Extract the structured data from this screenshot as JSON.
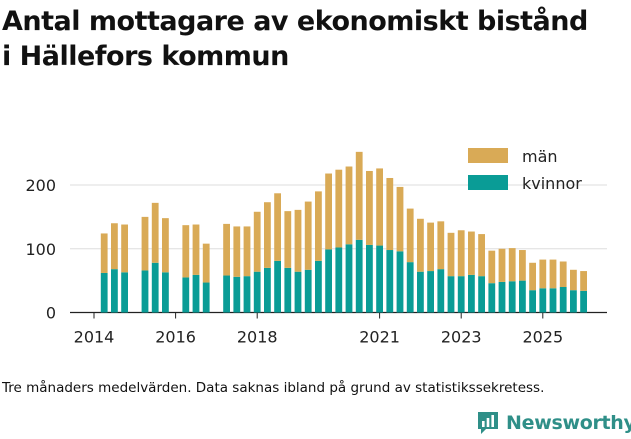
{
  "title_lines": [
    "Antal mottagare av ekonomiskt bistånd",
    "i Hällefors kommun"
  ],
  "footnote": "Tre månaders medelvärden. Data saknas ibland på grund av statistikssekretess.",
  "brand": {
    "name": "Newsworthy",
    "icon": "newsworthy-logo-icon",
    "color": "#2f8f88"
  },
  "colors": {
    "man": "#d9aa56",
    "kvinnor": "#0a9c96",
    "grid": "#dddddd"
  },
  "chart_data": {
    "type": "bar",
    "stacked": true,
    "title": "Antal mottagare av ekonomiskt bistånd i Hällefors kommun",
    "xlabel": "",
    "ylabel": "",
    "ylim": [
      0,
      290
    ],
    "yticks": [
      0,
      100,
      200
    ],
    "xticks": [
      2014,
      2016,
      2018,
      2021,
      2023,
      2025
    ],
    "legend_position": "top-right",
    "x": [
      2014.25,
      2014.5,
      2014.75,
      2015.25,
      2015.5,
      2015.75,
      2016.25,
      2016.5,
      2016.75,
      2017.25,
      2017.5,
      2017.75,
      2018.0,
      2018.25,
      2018.5,
      2018.75,
      2019.0,
      2019.25,
      2019.5,
      2019.75,
      2020.0,
      2020.25,
      2020.5,
      2020.75,
      2021.0,
      2021.25,
      2021.5,
      2021.75,
      2022.0,
      2022.25,
      2022.5,
      2022.75,
      2023.0,
      2023.25,
      2023.5,
      2023.75,
      2024.0,
      2024.25,
      2024.5,
      2024.75,
      2025.0,
      2025.25,
      2025.5,
      2025.75,
      2026.0
    ],
    "series": [
      {
        "name": "kvinnor",
        "color": "#0a9c96",
        "values": [
          62,
          68,
          63,
          66,
          78,
          63,
          55,
          59,
          47,
          58,
          56,
          57,
          64,
          70,
          81,
          70,
          64,
          67,
          81,
          99,
          102,
          107,
          114,
          106,
          105,
          98,
          96,
          79,
          64,
          65,
          68,
          57,
          57,
          59,
          57,
          46,
          48,
          49,
          50,
          35,
          38,
          38,
          40,
          35,
          34
        ]
      },
      {
        "name": "män",
        "color": "#d9aa56",
        "values": [
          62,
          72,
          75,
          84,
          94,
          85,
          82,
          79,
          61,
          81,
          79,
          78,
          94,
          103,
          106,
          89,
          97,
          107,
          109,
          119,
          122,
          122,
          138,
          116,
          121,
          113,
          101,
          84,
          83,
          76,
          75,
          68,
          72,
          68,
          66,
          51,
          52,
          52,
          48,
          43,
          45,
          45,
          40,
          32,
          31
        ]
      }
    ]
  }
}
